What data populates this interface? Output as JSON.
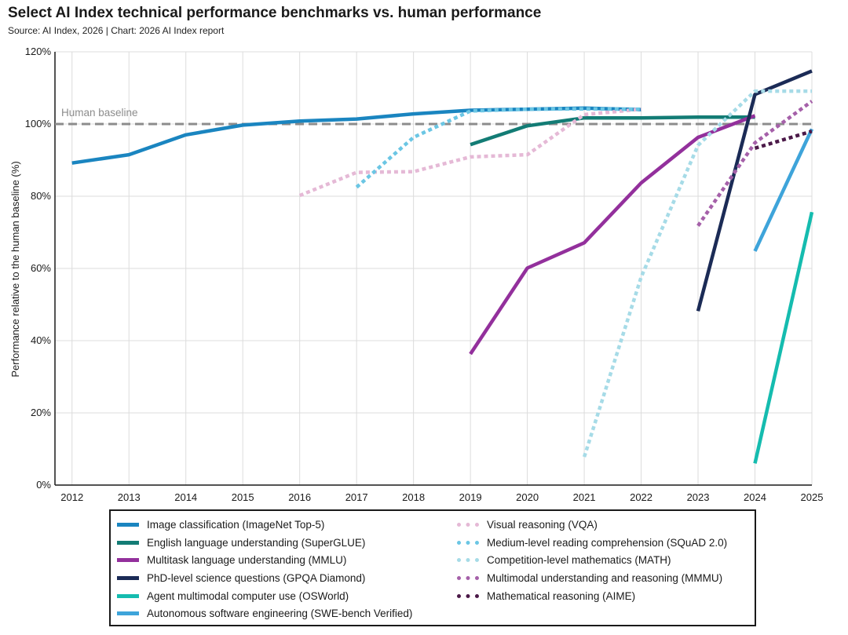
{
  "header": {
    "title": "Select AI Index technical performance benchmarks vs. human performance",
    "subtitle": "Source: AI Index, 2026 | Chart: 2026 AI Index report"
  },
  "chart_data": {
    "type": "line",
    "title": "Select AI Index technical performance benchmarks vs. human performance",
    "xlabel": "",
    "ylabel": "Performance relative to the human baseline (%)",
    "xlim": [
      2011.7,
      2025
    ],
    "ylim": [
      0,
      120
    ],
    "x_ticks": [
      "2012",
      "2013",
      "2014",
      "2015",
      "2016",
      "2017",
      "2018",
      "2019",
      "2020",
      "2021",
      "2022",
      "2023",
      "2024",
      "2025"
    ],
    "y_ticks": [
      "0%",
      "20%",
      "40%",
      "60%",
      "80%",
      "100%",
      "120%"
    ],
    "y_tick_values": [
      0,
      20,
      40,
      60,
      80,
      100,
      120
    ],
    "grid": true,
    "baseline": {
      "label": "Human baseline",
      "value": 100,
      "color": "#8c8c8c"
    },
    "series": [
      {
        "name": "Image classification (ImageNet Top-5)",
        "color": "#1a85c0",
        "dashed": false,
        "points": [
          [
            2012,
            89.2
          ],
          [
            2013,
            91.5
          ],
          [
            2014,
            97.0
          ],
          [
            2015,
            99.7
          ],
          [
            2016,
            100.8
          ],
          [
            2017,
            101.4
          ],
          [
            2018,
            102.8
          ],
          [
            2019,
            103.8
          ],
          [
            2020,
            104.1
          ],
          [
            2021,
            104.4
          ],
          [
            2022,
            104.0
          ]
        ]
      },
      {
        "name": "English language understanding (SuperGLUE)",
        "color": "#137c75",
        "dashed": false,
        "points": [
          [
            2019,
            94.3
          ],
          [
            2020,
            99.5
          ],
          [
            2021,
            101.7
          ],
          [
            2022,
            101.7
          ],
          [
            2023,
            101.9
          ],
          [
            2024,
            101.9
          ]
        ]
      },
      {
        "name": "Multitask language understanding (MMLU)",
        "color": "#93309c",
        "dashed": false,
        "points": [
          [
            2019,
            36.3
          ],
          [
            2020,
            60.1
          ],
          [
            2021,
            67.1
          ],
          [
            2022,
            83.7
          ],
          [
            2023,
            96.3
          ],
          [
            2024,
            102.3
          ]
        ]
      },
      {
        "name": "PhD-level science questions (GPQA Diamond)",
        "color": "#1b2b56",
        "dashed": false,
        "points": [
          [
            2023,
            48.2
          ],
          [
            2024,
            108.2
          ],
          [
            2025,
            114.7
          ]
        ]
      },
      {
        "name": "Agent multimodal computer use (OSWorld)",
        "color": "#15bcaf",
        "dashed": false,
        "points": [
          [
            2024,
            6.0
          ],
          [
            2025,
            75.6
          ]
        ]
      },
      {
        "name": "Autonomous software engineering (SWE-bench Verified)",
        "color": "#3ea4da",
        "dashed": false,
        "points": [
          [
            2024,
            64.8
          ],
          [
            2025,
            98.6
          ]
        ]
      },
      {
        "name": "Visual reasoning (VQA)",
        "color": "#e5b9d6",
        "dashed": true,
        "points": [
          [
            2016,
            80.2
          ],
          [
            2017,
            86.6
          ],
          [
            2018,
            86.8
          ],
          [
            2019,
            90.9
          ],
          [
            2020,
            91.5
          ],
          [
            2021,
            102.6
          ],
          [
            2022,
            104.1
          ]
        ]
      },
      {
        "name": "Medium-level reading comprehension (SQuAD 2.0)",
        "color": "#6bc6e4",
        "dashed": true,
        "points": [
          [
            2017,
            82.5
          ],
          [
            2018,
            96.3
          ],
          [
            2019,
            103.6
          ],
          [
            2020,
            104.1
          ],
          [
            2021,
            104.2
          ],
          [
            2022,
            104.1
          ]
        ]
      },
      {
        "name": "Competition-level mathematics (MATH)",
        "color": "#a6dbe7",
        "dashed": true,
        "points": [
          [
            2021,
            7.8
          ],
          [
            2022,
            57.6
          ],
          [
            2023,
            94.1
          ],
          [
            2024,
            109.1
          ],
          [
            2025,
            109.1
          ]
        ]
      },
      {
        "name": "Multimodal understanding and reasoning (MMMU)",
        "color": "#a560a9",
        "dashed": true,
        "points": [
          [
            2023,
            71.8
          ],
          [
            2024,
            94.8
          ],
          [
            2025,
            106.3
          ]
        ]
      },
      {
        "name": "Mathematical reasoning (AIME)",
        "color": "#4b1948",
        "dashed": true,
        "points": [
          [
            2024,
            93.3
          ],
          [
            2025,
            98.0
          ]
        ]
      }
    ]
  }
}
